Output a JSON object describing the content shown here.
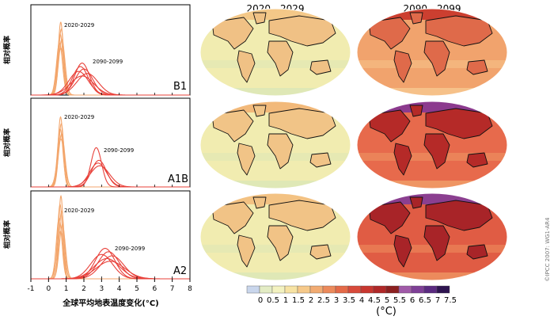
{
  "map_headers": [
    "2020 - 2029",
    "2090 - 2099"
  ],
  "copyright": "©IPCC 2007: WG1-AR4",
  "y_axis_label": "相对概率",
  "x_axis_label": "全球平均地表温度变化(°C)",
  "colorbar": {
    "unit": "(°C)",
    "ticks": [
      "0",
      "0.5",
      "1",
      "1.5",
      "2",
      "2.5",
      "3",
      "3.5",
      "4",
      "4.5",
      "5",
      "5.5",
      "6",
      "6.5",
      "7",
      "7.5"
    ],
    "colors": [
      "#c9d6ec",
      "#e3ecc4",
      "#f3f2c0",
      "#f7e3a3",
      "#f6c98a",
      "#f2ab72",
      "#ec8a5b",
      "#e46a48",
      "#d84a3a",
      "#c8362f",
      "#b02828",
      "#8c2020",
      "#a05aa8",
      "#7e3f96",
      "#5a2a80",
      "#2e1450"
    ]
  },
  "chart_data": [
    {
      "type": "line",
      "panel": "B1",
      "xlim": [
        -1,
        8
      ],
      "x_ticks": [
        "-1",
        "0",
        "1",
        "2",
        "3",
        "4",
        "5",
        "6",
        "7",
        "8"
      ],
      "annotations": [
        "2020-2029",
        "2090-2099"
      ],
      "series": [
        {
          "group": "2020-2029",
          "curves": [
            [
              0.69,
              2.1,
              0.14
            ],
            [
              0.72,
              1.9,
              0.15
            ],
            [
              0.66,
              1.75,
              0.16
            ],
            [
              0.75,
              1.6,
              0.18
            ],
            [
              0.62,
              1.5,
              0.17
            ],
            [
              0.7,
              1.35,
              0.2
            ]
          ]
        },
        {
          "group": "2090-2099",
          "curves": [
            [
              1.9,
              0.92,
              0.42
            ],
            [
              1.8,
              0.82,
              0.45
            ],
            [
              2.0,
              0.75,
              0.5
            ],
            [
              1.7,
              0.68,
              0.55
            ],
            [
              2.2,
              0.62,
              0.6
            ],
            [
              1.9,
              0.55,
              0.65
            ]
          ]
        }
      ]
    },
    {
      "type": "line",
      "panel": "A1B",
      "xlim": [
        -1,
        8
      ],
      "x_ticks": [
        "-1",
        "0",
        "1",
        "2",
        "3",
        "4",
        "5",
        "6",
        "7",
        "8"
      ],
      "annotations": [
        "2020-2029",
        "2090-2099"
      ],
      "series": [
        {
          "group": "2020-2029",
          "curves": [
            [
              0.68,
              2.05,
              0.14
            ],
            [
              0.72,
              1.85,
              0.15
            ],
            [
              0.66,
              1.7,
              0.16
            ],
            [
              0.74,
              1.55,
              0.18
            ],
            [
              0.7,
              1.4,
              0.2
            ]
          ]
        },
        {
          "group": "2090-2099",
          "curves": [
            [
              2.7,
              1.15,
              0.3
            ],
            [
              2.85,
              0.78,
              0.42
            ],
            [
              2.8,
              0.7,
              0.48
            ],
            [
              2.9,
              0.62,
              0.55
            ]
          ]
        }
      ]
    },
    {
      "type": "line",
      "panel": "A2",
      "xlim": [
        -1,
        8
      ],
      "x_ticks": [
        "-1",
        "0",
        "1",
        "2",
        "3",
        "4",
        "5",
        "6",
        "7",
        "8"
      ],
      "annotations": [
        "2020-2029",
        "2090-2099"
      ],
      "series": [
        {
          "group": "2020-2029",
          "curves": [
            [
              0.7,
              2.45,
              0.13
            ],
            [
              0.65,
              2.2,
              0.14
            ],
            [
              0.74,
              2.0,
              0.15
            ],
            [
              0.6,
              1.8,
              0.16
            ],
            [
              0.78,
              1.6,
              0.17
            ],
            [
              0.68,
              1.4,
              0.19
            ]
          ]
        },
        {
          "group": "2090-2099",
          "curves": [
            [
              3.2,
              0.9,
              0.55
            ],
            [
              3.4,
              0.8,
              0.6
            ],
            [
              3.0,
              0.72,
              0.62
            ],
            [
              3.6,
              0.68,
              0.65
            ],
            [
              3.3,
              0.6,
              0.72
            ],
            [
              3.5,
              0.52,
              0.8
            ]
          ]
        }
      ]
    }
  ]
}
